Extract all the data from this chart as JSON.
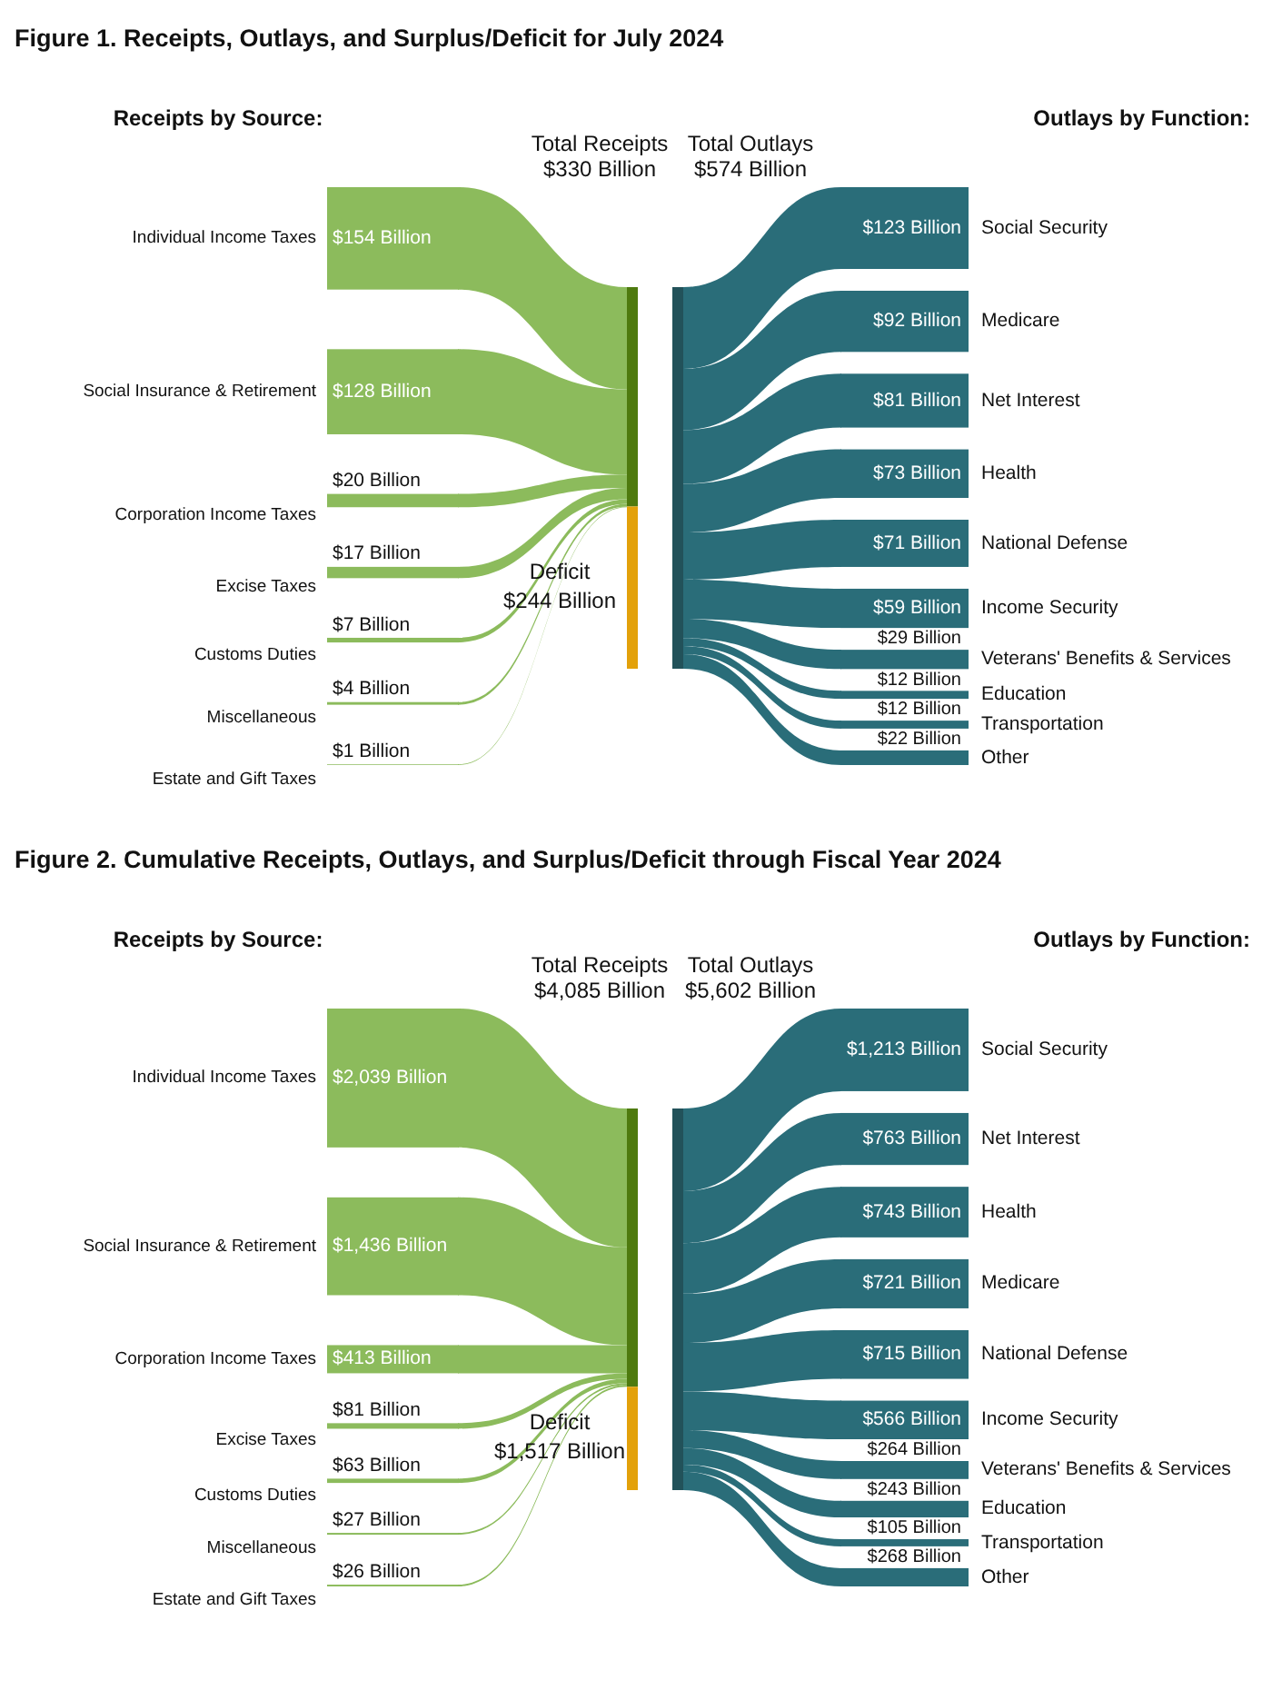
{
  "chart_data": [
    {
      "type": "other",
      "title": "Figure 1. Receipts, Outlays, and Surplus/Deficit for July 2024",
      "annotations": [
        "Receipts by Source:",
        "Outlays by Function:"
      ],
      "categories": [
        "Individual Income Taxes",
        "Social Insurance & Retirement",
        "Corporation Income Taxes",
        "Excise Taxes",
        "Customs Duties",
        "Miscellaneous",
        "Estate and Gift Taxes",
        "Total Receipts",
        "Deficit",
        "Total Outlays",
        "Social Security",
        "Medicare",
        "Net Interest",
        "Health",
        "National Defense",
        "Income Security",
        "Veterans' Benefits & Services",
        "Education",
        "Transportation",
        "Other"
      ],
      "values": [
        154,
        128,
        20,
        17,
        7,
        4,
        1,
        330,
        244,
        574,
        123,
        92,
        81,
        73,
        71,
        59,
        29,
        12,
        12,
        22
      ],
      "value_labels": [
        "$154 Billion",
        "$128 Billion",
        "$20 Billion",
        "$17 Billion",
        "$7 Billion",
        "$4 Billion",
        "$1 Billion",
        "$330 Billion",
        "$244 Billion",
        "$574 Billion",
        "$123 Billion",
        "$92 Billion",
        "$81 Billion",
        "$73 Billion",
        "$71 Billion",
        "$59 Billion",
        "$29 Billion",
        "$12 Billion",
        "$12 Billion",
        "$22 Billion"
      ],
      "colors": [
        "#8cbb5c",
        "#8cbb5c",
        "#8cbb5c",
        "#8cbb5c",
        "#8cbb5c",
        "#8cbb5c",
        "#8cbb5c",
        "#4e7a0e",
        "#e3a10a",
        "#22525a",
        "#2a6d79",
        "#2a6d79",
        "#2a6d79",
        "#2a6d79",
        "#2a6d79",
        "#2a6d79",
        "#2a6d79",
        "#2a6d79",
        "#2a6d79",
        "#2a6d79"
      ]
    },
    {
      "type": "other",
      "title": "Figure 2. Cumulative Receipts, Outlays, and Surplus/Deficit through Fiscal Year 2024",
      "annotations": [
        "Receipts by Source:",
        "Outlays by Function:"
      ],
      "categories": [
        "Individual Income Taxes",
        "Social Insurance & Retirement",
        "Corporation Income Taxes",
        "Excise Taxes",
        "Customs Duties",
        "Miscellaneous",
        "Estate and Gift Taxes",
        "Total Receipts",
        "Deficit",
        "Total Outlays",
        "Social Security",
        "Net Interest",
        "Health",
        "Medicare",
        "National Defense",
        "Income Security",
        "Veterans' Benefits & Services",
        "Education",
        "Transportation",
        "Other"
      ],
      "values": [
        2039,
        1436,
        413,
        81,
        63,
        27,
        26,
        4085,
        1517,
        5602,
        1213,
        763,
        743,
        721,
        715,
        566,
        264,
        243,
        105,
        268
      ],
      "value_labels": [
        "$2,039 Billion",
        "$1,436 Billion",
        "$413 Billion",
        "$81 Billion",
        "$63 Billion",
        "$27 Billion",
        "$26 Billion",
        "$4,085 Billion",
        "$1,517 Billion",
        "$5,602 Billion",
        "$1,213 Billion",
        "$763 Billion",
        "$743 Billion",
        "$721 Billion",
        "$715 Billion",
        "$566 Billion",
        "$264 Billion",
        "$243 Billion",
        "$105 Billion",
        "$268 Billion"
      ],
      "colors": [
        "#8cbb5c",
        "#8cbb5c",
        "#8cbb5c",
        "#8cbb5c",
        "#8cbb5c",
        "#8cbb5c",
        "#8cbb5c",
        "#4e7a0e",
        "#e3a10a",
        "#22525a",
        "#2a6d79",
        "#2a6d79",
        "#2a6d79",
        "#2a6d79",
        "#2a6d79",
        "#2a6d79",
        "#2a6d79",
        "#2a6d79",
        "#2a6d79",
        "#2a6d79"
      ]
    }
  ]
}
